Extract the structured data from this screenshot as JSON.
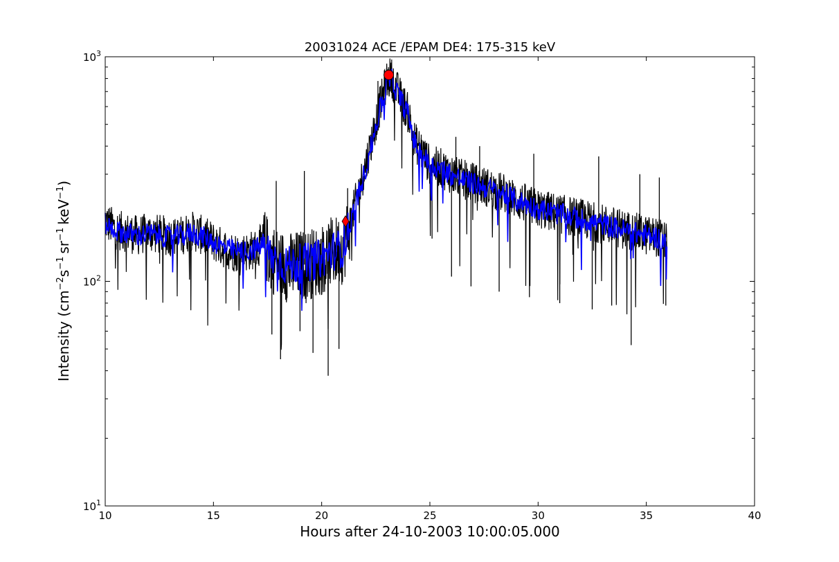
{
  "chart_data": {
    "type": "line",
    "title": "20031024 ACE /EPAM DE4: 175-315 keV",
    "xlabel": "Hours after 24-10-2003 10:00:05.000",
    "ylabel": {
      "prefix": "Intensity (cm",
      "exp1": "−2",
      "part2": "s",
      "exp2": "−1",
      "part3": "sr",
      "exp3": "−1",
      "part4": "keV",
      "exp4": "−1",
      "suffix": ")"
    },
    "xlim": [
      10,
      40
    ],
    "ylim": [
      10,
      1000
    ],
    "yscale": "log",
    "grid": false,
    "xticks": [
      10,
      15,
      20,
      25,
      30,
      35,
      40
    ],
    "xtick_labels": [
      "10",
      "15",
      "20",
      "25",
      "30",
      "35",
      "40"
    ],
    "yticks": [
      {
        "value": 10,
        "base": "10",
        "exp": "1"
      },
      {
        "value": 100,
        "base": "10",
        "exp": "2"
      },
      {
        "value": 1000,
        "base": "10",
        "exp": "3"
      }
    ],
    "series": [
      {
        "style": "raw",
        "color": "#000000",
        "x": [
          10.0,
          10.5,
          11.0,
          11.5,
          12.0,
          12.5,
          13.0,
          13.5,
          14.0,
          14.5,
          15.0,
          15.5,
          16.0,
          16.5,
          17.0,
          17.3,
          17.6,
          18.0,
          18.5,
          19.0,
          19.5,
          20.0,
          20.5,
          21.0,
          21.3,
          21.6,
          22.0,
          22.3,
          22.6,
          23.0,
          23.2,
          23.5,
          24.0,
          24.3,
          24.6,
          25.0,
          25.5,
          26.0,
          26.5,
          27.0,
          27.5,
          28.0,
          28.5,
          29.0,
          29.5,
          30.0,
          30.5,
          31.0,
          31.5,
          32.0,
          32.5,
          33.0,
          33.5,
          34.0,
          34.5,
          35.0,
          35.5,
          35.95
        ],
        "y": [
          185,
          170,
          165,
          160,
          165,
          162,
          158,
          160,
          168,
          160,
          150,
          140,
          135,
          135,
          140,
          150,
          130,
          120,
          115,
          118,
          120,
          125,
          135,
          140,
          180,
          230,
          320,
          420,
          560,
          780,
          820,
          700,
          560,
          420,
          380,
          330,
          320,
          300,
          285,
          275,
          265,
          255,
          245,
          230,
          220,
          210,
          205,
          200,
          195,
          190,
          185,
          180,
          175,
          170,
          165,
          160,
          158,
          150
        ],
        "spikes_down": [
          [
            17.7,
            58
          ],
          [
            18.1,
            45
          ],
          [
            19.0,
            60
          ],
          [
            19.6,
            48
          ],
          [
            20.3,
            38
          ],
          [
            20.8,
            50
          ],
          [
            25.1,
            155
          ],
          [
            26.0,
            105
          ],
          [
            26.9,
            95
          ],
          [
            28.2,
            90
          ],
          [
            29.6,
            85
          ],
          [
            31.0,
            80
          ],
          [
            32.5,
            75
          ],
          [
            33.4,
            78
          ],
          [
            34.3,
            52
          ],
          [
            35.9,
            78
          ]
        ],
        "spikes_up": [
          [
            17.9,
            280
          ],
          [
            19.2,
            310
          ],
          [
            21.2,
            260
          ],
          [
            22.6,
            780
          ],
          [
            23.4,
            680
          ],
          [
            24.6,
            450
          ],
          [
            26.2,
            440
          ],
          [
            27.3,
            400
          ],
          [
            29.8,
            370
          ],
          [
            32.8,
            360
          ],
          [
            34.7,
            300
          ],
          [
            35.6,
            290
          ]
        ]
      },
      {
        "style": "smoothed",
        "color": "#0000ff",
        "x": [
          10.0,
          10.5,
          11.0,
          11.5,
          12.0,
          12.5,
          13.0,
          13.5,
          14.0,
          14.5,
          15.0,
          15.5,
          16.0,
          16.5,
          17.0,
          17.3,
          17.6,
          18.0,
          18.5,
          19.0,
          19.5,
          20.0,
          20.5,
          21.0,
          21.3,
          21.6,
          22.0,
          22.3,
          22.6,
          23.0,
          23.2,
          23.5,
          24.0,
          24.3,
          24.6,
          25.0,
          25.5,
          26.0,
          26.5,
          27.0,
          27.5,
          28.0,
          28.5,
          29.0,
          29.5,
          30.0,
          30.5,
          31.0,
          31.5,
          32.0,
          32.5,
          33.0,
          33.5,
          34.0,
          34.5,
          35.0,
          35.5,
          35.95
        ],
        "y": [
          180,
          168,
          163,
          160,
          163,
          160,
          157,
          159,
          165,
          158,
          150,
          141,
          136,
          136,
          140,
          148,
          132,
          122,
          118,
          120,
          122,
          127,
          136,
          142,
          178,
          225,
          310,
          400,
          540,
          740,
          800,
          690,
          550,
          410,
          375,
          328,
          318,
          298,
          283,
          273,
          263,
          253,
          243,
          230,
          220,
          210,
          205,
          199,
          194,
          189,
          184,
          179,
          174,
          169,
          164,
          160,
          157,
          150
        ]
      }
    ],
    "markers": [
      {
        "shape": "diamond",
        "color": "#ff0000",
        "x": 21.1,
        "y": 185
      },
      {
        "shape": "circle",
        "color": "#ff0000",
        "x": 23.1,
        "y": 830
      }
    ]
  }
}
